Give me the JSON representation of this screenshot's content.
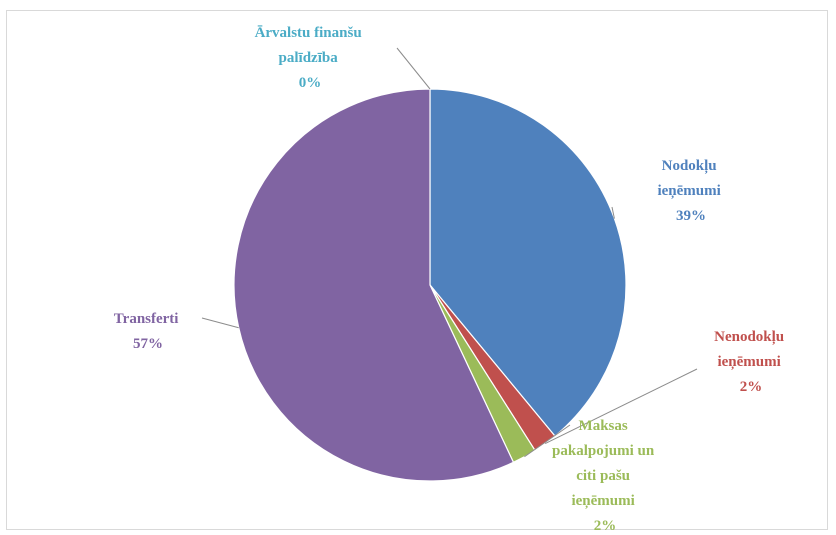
{
  "chart_data": {
    "type": "pie",
    "title": "",
    "slices": [
      {
        "label_lines": [
          "Nodokļu",
          "ieņēmumi"
        ],
        "percent_label": "39%",
        "value": 39,
        "color": "#4f81bd"
      },
      {
        "label_lines": [
          "Nenodokļu",
          "ieņēmumi"
        ],
        "percent_label": "2%",
        "value": 2,
        "color": "#c0504d"
      },
      {
        "label_lines": [
          "Maksas",
          "pakalpojumi un",
          "citi pašu",
          "ieņēmumi"
        ],
        "percent_label": "2%",
        "value": 2,
        "color": "#9bbb59"
      },
      {
        "label_lines": [
          "Transferti"
        ],
        "percent_label": "57%",
        "value": 57,
        "color": "#8064a2"
      },
      {
        "label_lines": [
          "Ārvalstu finanšu",
          "palīdzība"
        ],
        "percent_label": "0%",
        "value": 0,
        "color": "#4bacc6"
      }
    ],
    "start_angle_deg": 0,
    "direction": "clockwise",
    "legend": "none",
    "data_labels": "outside-with-leader-lines"
  }
}
